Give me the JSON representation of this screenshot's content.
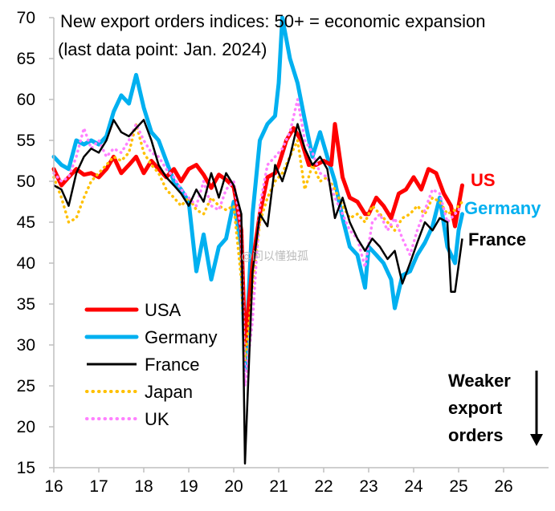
{
  "chart_data": {
    "type": "line",
    "title": "New export orders indices: 50+ = economic expansion",
    "subtitle": "(last data point: Jan. 2024)",
    "xlabel": "",
    "ylabel": "",
    "xlim": [
      16,
      27
    ],
    "ylim": [
      15,
      70
    ],
    "x_ticks": [
      "16",
      "17",
      "18",
      "19",
      "20",
      "21",
      "22",
      "23",
      "24",
      "25",
      "26"
    ],
    "y_ticks": [
      "15",
      "20",
      "25",
      "30",
      "35",
      "40",
      "45",
      "50",
      "55",
      "60",
      "65",
      "70"
    ],
    "legend_position": "bottom-left",
    "series": [
      {
        "name": "USA",
        "color": "#ff0000",
        "style": "solid",
        "points": [
          [
            16.0,
            51.5
          ],
          [
            16.17,
            49.5
          ],
          [
            16.33,
            50.5
          ],
          [
            16.5,
            51.5
          ],
          [
            16.67,
            50.8
          ],
          [
            16.83,
            51.0
          ],
          [
            17.0,
            50.5
          ],
          [
            17.17,
            51.5
          ],
          [
            17.33,
            53.0
          ],
          [
            17.5,
            51.0
          ],
          [
            17.67,
            52.0
          ],
          [
            17.83,
            53.0
          ],
          [
            18.0,
            51.0
          ],
          [
            18.17,
            52.5
          ],
          [
            18.33,
            51.5
          ],
          [
            18.5,
            50.5
          ],
          [
            18.67,
            51.5
          ],
          [
            18.83,
            50.0
          ],
          [
            19.0,
            51.5
          ],
          [
            19.17,
            52.0
          ],
          [
            19.33,
            50.8
          ],
          [
            19.5,
            49.2
          ],
          [
            19.67,
            50.8
          ],
          [
            19.83,
            50.2
          ],
          [
            20.0,
            49.3
          ],
          [
            20.17,
            44.0
          ],
          [
            20.25,
            30.0
          ],
          [
            20.42,
            40.0
          ],
          [
            20.58,
            46.0
          ],
          [
            20.75,
            50.5
          ],
          [
            20.92,
            51.0
          ],
          [
            21.0,
            52.0
          ],
          [
            21.17,
            55.0
          ],
          [
            21.33,
            56.5
          ],
          [
            21.5,
            55.0
          ],
          [
            21.67,
            52.0
          ],
          [
            21.83,
            52.0
          ],
          [
            22.0,
            52.5
          ],
          [
            22.17,
            52.0
          ],
          [
            22.25,
            57.0
          ],
          [
            22.42,
            50.5
          ],
          [
            22.58,
            48.0
          ],
          [
            22.75,
            47.5
          ],
          [
            22.92,
            46.0
          ],
          [
            23.0,
            46.0
          ],
          [
            23.17,
            48.0
          ],
          [
            23.33,
            47.0
          ],
          [
            23.5,
            45.5
          ],
          [
            23.67,
            48.5
          ],
          [
            23.83,
            49.0
          ],
          [
            24.0,
            50.5
          ],
          [
            24.17,
            49.0
          ],
          [
            24.33,
            51.5
          ],
          [
            24.5,
            51.0
          ],
          [
            24.67,
            48.5
          ],
          [
            24.83,
            47.0
          ],
          [
            24.92,
            44.5
          ],
          [
            25.08,
            49.5
          ]
        ]
      },
      {
        "name": "Germany",
        "color": "#00b0f0",
        "style": "solid",
        "points": [
          [
            16.0,
            53.0
          ],
          [
            16.17,
            52.0
          ],
          [
            16.33,
            51.5
          ],
          [
            16.5,
            55.0
          ],
          [
            16.67,
            54.5
          ],
          [
            16.83,
            55.0
          ],
          [
            17.0,
            54.5
          ],
          [
            17.17,
            55.5
          ],
          [
            17.33,
            58.5
          ],
          [
            17.5,
            60.5
          ],
          [
            17.67,
            59.5
          ],
          [
            17.83,
            63.0
          ],
          [
            18.0,
            59.0
          ],
          [
            18.17,
            56.0
          ],
          [
            18.33,
            55.0
          ],
          [
            18.5,
            52.5
          ],
          [
            18.67,
            50.0
          ],
          [
            18.83,
            49.0
          ],
          [
            19.0,
            47.5
          ],
          [
            19.17,
            39.0
          ],
          [
            19.33,
            43.5
          ],
          [
            19.5,
            38.0
          ],
          [
            19.67,
            42.0
          ],
          [
            19.83,
            43.0
          ],
          [
            20.0,
            47.5
          ],
          [
            20.17,
            42.0
          ],
          [
            20.25,
            27.0
          ],
          [
            20.42,
            46.0
          ],
          [
            20.58,
            55.0
          ],
          [
            20.75,
            57.0
          ],
          [
            20.92,
            58.0
          ],
          [
            21.0,
            62.0
          ],
          [
            21.08,
            70.0
          ],
          [
            21.25,
            65.0
          ],
          [
            21.42,
            62.0
          ],
          [
            21.58,
            57.5
          ],
          [
            21.75,
            53.0
          ],
          [
            21.92,
            56.0
          ],
          [
            22.08,
            53.0
          ],
          [
            22.25,
            50.0
          ],
          [
            22.42,
            45.5
          ],
          [
            22.58,
            42.0
          ],
          [
            22.75,
            41.0
          ],
          [
            22.92,
            37.0
          ],
          [
            23.0,
            42.0
          ],
          [
            23.17,
            41.0
          ],
          [
            23.33,
            40.0
          ],
          [
            23.5,
            38.0
          ],
          [
            23.58,
            34.5
          ],
          [
            23.75,
            38.5
          ],
          [
            23.92,
            39.0
          ],
          [
            24.08,
            41.0
          ],
          [
            24.25,
            42.5
          ],
          [
            24.42,
            44.5
          ],
          [
            24.58,
            48.0
          ],
          [
            24.75,
            42.0
          ],
          [
            24.92,
            40.0
          ],
          [
            25.0,
            44.0
          ],
          [
            25.08,
            46.0
          ]
        ]
      },
      {
        "name": "France",
        "color": "#000000",
        "style": "solid",
        "points": [
          [
            16.0,
            49.5
          ],
          [
            16.17,
            49.0
          ],
          [
            16.33,
            47.0
          ],
          [
            16.5,
            51.0
          ],
          [
            16.67,
            53.0
          ],
          [
            16.83,
            54.0
          ],
          [
            17.0,
            53.5
          ],
          [
            17.17,
            55.0
          ],
          [
            17.33,
            57.5
          ],
          [
            17.5,
            56.0
          ],
          [
            17.67,
            55.5
          ],
          [
            17.83,
            56.5
          ],
          [
            18.0,
            57.5
          ],
          [
            18.17,
            55.0
          ],
          [
            18.33,
            52.0
          ],
          [
            18.5,
            50.5
          ],
          [
            18.67,
            49.5
          ],
          [
            18.83,
            48.5
          ],
          [
            19.0,
            47.0
          ],
          [
            19.17,
            49.0
          ],
          [
            19.33,
            47.5
          ],
          [
            19.5,
            51.0
          ],
          [
            19.67,
            48.0
          ],
          [
            19.83,
            51.0
          ],
          [
            20.0,
            49.5
          ],
          [
            20.17,
            46.0
          ],
          [
            20.25,
            15.5
          ],
          [
            20.42,
            39.0
          ],
          [
            20.58,
            46.0
          ],
          [
            20.75,
            44.5
          ],
          [
            20.92,
            52.0
          ],
          [
            21.08,
            50.0
          ],
          [
            21.25,
            53.0
          ],
          [
            21.42,
            57.0
          ],
          [
            21.58,
            54.0
          ],
          [
            21.75,
            52.0
          ],
          [
            21.92,
            53.0
          ],
          [
            22.08,
            51.5
          ],
          [
            22.25,
            45.5
          ],
          [
            22.42,
            48.0
          ],
          [
            22.58,
            45.0
          ],
          [
            22.75,
            43.0
          ],
          [
            22.92,
            41.5
          ],
          [
            23.08,
            43.0
          ],
          [
            23.25,
            42.0
          ],
          [
            23.42,
            40.5
          ],
          [
            23.58,
            41.5
          ],
          [
            23.75,
            37.5
          ],
          [
            23.92,
            40.0
          ],
          [
            24.08,
            42.5
          ],
          [
            24.25,
            45.0
          ],
          [
            24.42,
            44.0
          ],
          [
            24.58,
            45.5
          ],
          [
            24.75,
            45.0
          ],
          [
            24.83,
            36.5
          ],
          [
            24.92,
            36.5
          ],
          [
            25.08,
            43.0
          ]
        ]
      },
      {
        "name": "Japan",
        "color": "#ffc000",
        "style": "dotted",
        "points": [
          [
            16.0,
            50.5
          ],
          [
            16.17,
            48.0
          ],
          [
            16.33,
            45.0
          ],
          [
            16.5,
            45.5
          ],
          [
            16.67,
            48.0
          ],
          [
            16.83,
            50.0
          ],
          [
            17.0,
            51.0
          ],
          [
            17.17,
            52.0
          ],
          [
            17.33,
            53.0
          ],
          [
            17.5,
            52.5
          ],
          [
            17.67,
            53.5
          ],
          [
            17.83,
            57.0
          ],
          [
            18.0,
            53.5
          ],
          [
            18.17,
            52.0
          ],
          [
            18.33,
            51.0
          ],
          [
            18.5,
            49.0
          ],
          [
            18.67,
            48.0
          ],
          [
            18.83,
            47.0
          ],
          [
            19.0,
            48.0
          ],
          [
            19.17,
            46.5
          ],
          [
            19.33,
            46.0
          ],
          [
            19.5,
            48.0
          ],
          [
            19.67,
            47.0
          ],
          [
            19.83,
            46.5
          ],
          [
            20.0,
            47.0
          ],
          [
            20.17,
            38.0
          ],
          [
            20.25,
            28.0
          ],
          [
            20.42,
            37.0
          ],
          [
            20.58,
            45.0
          ],
          [
            20.75,
            48.0
          ],
          [
            20.92,
            50.0
          ],
          [
            21.08,
            51.0
          ],
          [
            21.25,
            53.0
          ],
          [
            21.42,
            55.0
          ],
          [
            21.58,
            49.0
          ],
          [
            21.75,
            52.0
          ],
          [
            21.92,
            50.0
          ],
          [
            22.08,
            50.5
          ],
          [
            22.25,
            49.0
          ],
          [
            22.42,
            47.0
          ],
          [
            22.58,
            45.5
          ],
          [
            22.75,
            46.0
          ],
          [
            22.92,
            45.0
          ],
          [
            23.08,
            47.0
          ],
          [
            23.25,
            46.0
          ],
          [
            23.42,
            45.0
          ],
          [
            23.58,
            44.0
          ],
          [
            23.75,
            45.5
          ],
          [
            23.92,
            46.0
          ],
          [
            24.08,
            47.0
          ],
          [
            24.25,
            46.0
          ],
          [
            24.42,
            48.0
          ],
          [
            24.58,
            47.5
          ],
          [
            24.75,
            46.0
          ],
          [
            24.92,
            46.5
          ],
          [
            25.08,
            47.5
          ]
        ]
      },
      {
        "name": "UK",
        "color": "#ff80ff",
        "style": "dotted",
        "points": [
          [
            16.0,
            51.0
          ],
          [
            16.17,
            50.0
          ],
          [
            16.33,
            50.5
          ],
          [
            16.5,
            53.0
          ],
          [
            16.67,
            56.5
          ],
          [
            16.83,
            54.0
          ],
          [
            17.0,
            55.0
          ],
          [
            17.17,
            53.0
          ],
          [
            17.33,
            54.0
          ],
          [
            17.5,
            53.5
          ],
          [
            17.67,
            55.0
          ],
          [
            17.83,
            57.0
          ],
          [
            18.0,
            55.0
          ],
          [
            18.17,
            53.5
          ],
          [
            18.33,
            53.0
          ],
          [
            18.5,
            51.5
          ],
          [
            18.67,
            50.5
          ],
          [
            18.83,
            49.0
          ],
          [
            19.0,
            48.0
          ],
          [
            19.17,
            47.0
          ],
          [
            19.33,
            50.0
          ],
          [
            19.5,
            47.0
          ],
          [
            19.67,
            46.5
          ],
          [
            19.83,
            49.0
          ],
          [
            20.0,
            50.0
          ],
          [
            20.17,
            44.0
          ],
          [
            20.25,
            25.0
          ],
          [
            20.42,
            33.0
          ],
          [
            20.58,
            47.0
          ],
          [
            20.75,
            52.0
          ],
          [
            20.92,
            53.0
          ],
          [
            21.08,
            54.0
          ],
          [
            21.25,
            56.0
          ],
          [
            21.42,
            60.0
          ],
          [
            21.58,
            55.0
          ],
          [
            21.75,
            53.5
          ],
          [
            21.92,
            51.0
          ],
          [
            22.08,
            50.5
          ],
          [
            22.25,
            48.0
          ],
          [
            22.42,
            46.0
          ],
          [
            22.58,
            44.0
          ],
          [
            22.75,
            43.0
          ],
          [
            22.92,
            39.5
          ],
          [
            23.08,
            45.0
          ],
          [
            23.25,
            46.0
          ],
          [
            23.42,
            44.0
          ],
          [
            23.58,
            45.5
          ],
          [
            23.75,
            43.0
          ],
          [
            23.92,
            41.0
          ],
          [
            24.08,
            44.0
          ],
          [
            24.25,
            46.5
          ],
          [
            24.42,
            49.0
          ],
          [
            24.58,
            48.5
          ],
          [
            24.75,
            45.0
          ],
          [
            24.92,
            46.0
          ],
          [
            25.08,
            47.0
          ]
        ]
      }
    ],
    "end_labels": [
      {
        "text": "US",
        "color": "#ff0000",
        "bold": true
      },
      {
        "text": "Germany",
        "color": "#00b0f0",
        "bold": true
      },
      {
        "text": "France",
        "color": "#000000",
        "bold": false
      }
    ],
    "annotation": {
      "lines": [
        "Weaker",
        "export",
        "orders"
      ],
      "arrow": "down"
    },
    "watermark": "@问以懂独孤"
  }
}
